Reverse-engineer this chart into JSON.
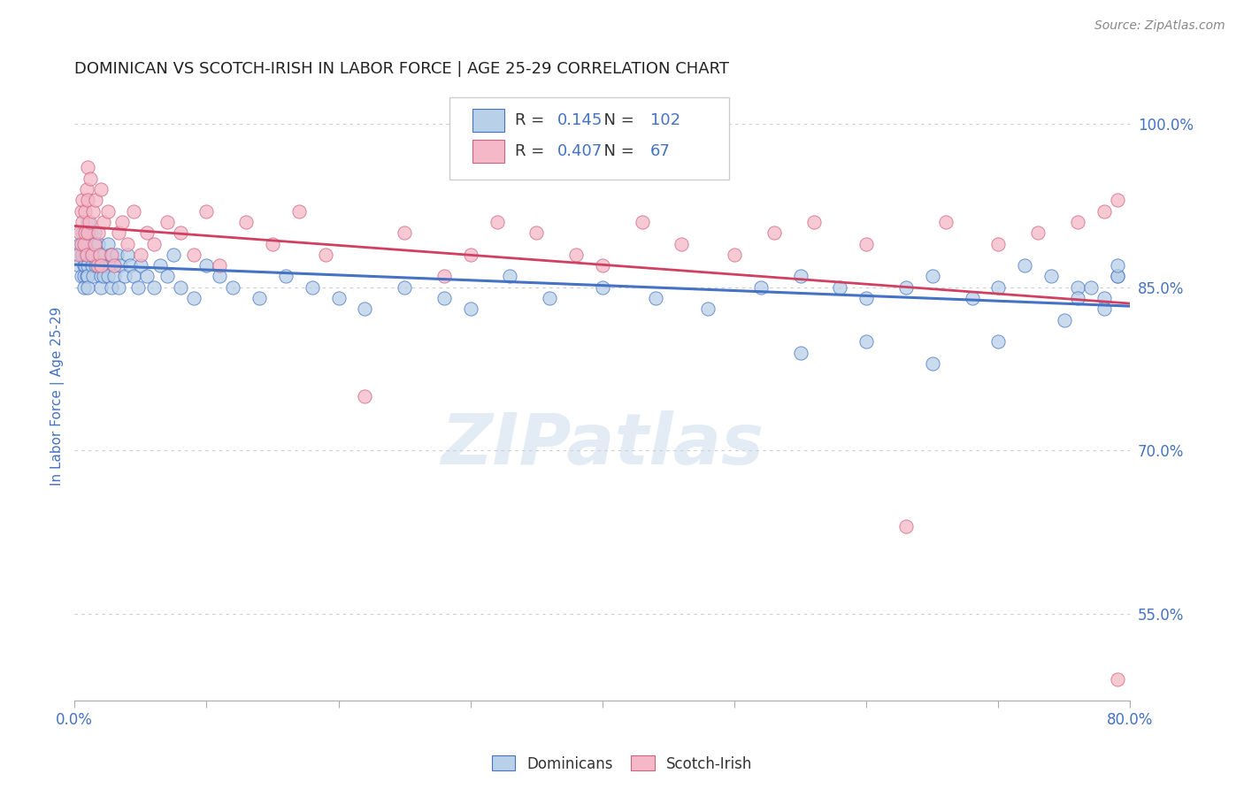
{
  "title": "DOMINICAN VS SCOTCH-IRISH IN LABOR FORCE | AGE 25-29 CORRELATION CHART",
  "source_text": "Source: ZipAtlas.com",
  "ylabel": "In Labor Force | Age 25-29",
  "xlim": [
    0.0,
    0.8
  ],
  "ylim": [
    0.47,
    1.03
  ],
  "xtick_vals": [
    0.0,
    0.1,
    0.2,
    0.3,
    0.4,
    0.5,
    0.6,
    0.7,
    0.8
  ],
  "xtick_labels_show": [
    "0.0%",
    "",
    "",
    "",
    "",
    "",
    "",
    "",
    "80.0%"
  ],
  "ytick_vals": [
    0.55,
    0.7,
    0.85,
    1.0
  ],
  "ytick_labels": [
    "55.0%",
    "70.0%",
    "85.0%",
    "100.0%"
  ],
  "blue_fill": "#b8d0e8",
  "blue_edge": "#4472c4",
  "pink_fill": "#f4b8c8",
  "pink_edge": "#d06080",
  "blue_line_color": "#4472c4",
  "pink_line_color": "#d04060",
  "blue_R": 0.145,
  "blue_N": 102,
  "pink_R": 0.407,
  "pink_N": 67,
  "legend_label_blue": "Dominicans",
  "legend_label_pink": "Scotch-Irish",
  "watermark": "ZIPatlas",
  "title_color": "#222222",
  "tick_label_color": "#4472c4",
  "background_color": "#ffffff",
  "grid_color": "#cccccc",
  "blue_scatter_x": [
    0.003,
    0.004,
    0.005,
    0.005,
    0.006,
    0.006,
    0.007,
    0.007,
    0.007,
    0.008,
    0.008,
    0.008,
    0.009,
    0.009,
    0.009,
    0.01,
    0.01,
    0.01,
    0.01,
    0.01,
    0.01,
    0.012,
    0.012,
    0.013,
    0.013,
    0.014,
    0.014,
    0.015,
    0.015,
    0.016,
    0.016,
    0.017,
    0.018,
    0.018,
    0.019,
    0.02,
    0.02,
    0.02,
    0.022,
    0.022,
    0.023,
    0.025,
    0.025,
    0.027,
    0.028,
    0.03,
    0.03,
    0.032,
    0.033,
    0.035,
    0.038,
    0.04,
    0.042,
    0.045,
    0.048,
    0.05,
    0.055,
    0.06,
    0.065,
    0.07,
    0.075,
    0.08,
    0.09,
    0.1,
    0.11,
    0.12,
    0.14,
    0.16,
    0.18,
    0.2,
    0.22,
    0.25,
    0.28,
    0.3,
    0.33,
    0.36,
    0.4,
    0.44,
    0.48,
    0.52,
    0.55,
    0.58,
    0.6,
    0.63,
    0.65,
    0.68,
    0.7,
    0.72,
    0.74,
    0.76,
    0.78,
    0.79,
    0.55,
    0.6,
    0.65,
    0.7,
    0.75,
    0.76,
    0.78,
    0.79,
    0.77,
    0.79
  ],
  "blue_scatter_y": [
    0.87,
    0.89,
    0.88,
    0.86,
    0.9,
    0.88,
    0.87,
    0.86,
    0.85,
    0.89,
    0.88,
    0.87,
    0.9,
    0.88,
    0.86,
    0.91,
    0.89,
    0.88,
    0.87,
    0.86,
    0.85,
    0.9,
    0.88,
    0.89,
    0.87,
    0.88,
    0.86,
    0.9,
    0.88,
    0.89,
    0.87,
    0.88,
    0.89,
    0.87,
    0.88,
    0.87,
    0.86,
    0.85,
    0.88,
    0.86,
    0.87,
    0.89,
    0.86,
    0.88,
    0.85,
    0.87,
    0.86,
    0.88,
    0.85,
    0.87,
    0.86,
    0.88,
    0.87,
    0.86,
    0.85,
    0.87,
    0.86,
    0.85,
    0.87,
    0.86,
    0.88,
    0.85,
    0.84,
    0.87,
    0.86,
    0.85,
    0.84,
    0.86,
    0.85,
    0.84,
    0.83,
    0.85,
    0.84,
    0.83,
    0.86,
    0.84,
    0.85,
    0.84,
    0.83,
    0.85,
    0.86,
    0.85,
    0.84,
    0.85,
    0.86,
    0.84,
    0.85,
    0.87,
    0.86,
    0.85,
    0.84,
    0.86,
    0.79,
    0.8,
    0.78,
    0.8,
    0.82,
    0.84,
    0.83,
    0.86,
    0.85,
    0.87
  ],
  "pink_scatter_x": [
    0.003,
    0.004,
    0.005,
    0.005,
    0.006,
    0.006,
    0.007,
    0.008,
    0.008,
    0.009,
    0.009,
    0.01,
    0.01,
    0.01,
    0.011,
    0.012,
    0.013,
    0.014,
    0.015,
    0.016,
    0.017,
    0.018,
    0.019,
    0.02,
    0.02,
    0.022,
    0.025,
    0.028,
    0.03,
    0.033,
    0.036,
    0.04,
    0.045,
    0.05,
    0.055,
    0.06,
    0.07,
    0.08,
    0.09,
    0.1,
    0.11,
    0.13,
    0.15,
    0.17,
    0.19,
    0.22,
    0.25,
    0.28,
    0.3,
    0.32,
    0.35,
    0.38,
    0.4,
    0.43,
    0.46,
    0.5,
    0.53,
    0.56,
    0.6,
    0.63,
    0.66,
    0.7,
    0.73,
    0.76,
    0.78,
    0.79,
    0.79
  ],
  "pink_scatter_y": [
    0.88,
    0.9,
    0.92,
    0.89,
    0.93,
    0.91,
    0.89,
    0.92,
    0.9,
    0.94,
    0.88,
    0.96,
    0.93,
    0.9,
    0.91,
    0.95,
    0.88,
    0.92,
    0.89,
    0.93,
    0.87,
    0.9,
    0.88,
    0.94,
    0.87,
    0.91,
    0.92,
    0.88,
    0.87,
    0.9,
    0.91,
    0.89,
    0.92,
    0.88,
    0.9,
    0.89,
    0.91,
    0.9,
    0.88,
    0.92,
    0.87,
    0.91,
    0.89,
    0.92,
    0.88,
    0.75,
    0.9,
    0.86,
    0.88,
    0.91,
    0.9,
    0.88,
    0.87,
    0.91,
    0.89,
    0.88,
    0.9,
    0.91,
    0.89,
    0.63,
    0.91,
    0.89,
    0.9,
    0.91,
    0.92,
    0.93,
    0.49
  ]
}
